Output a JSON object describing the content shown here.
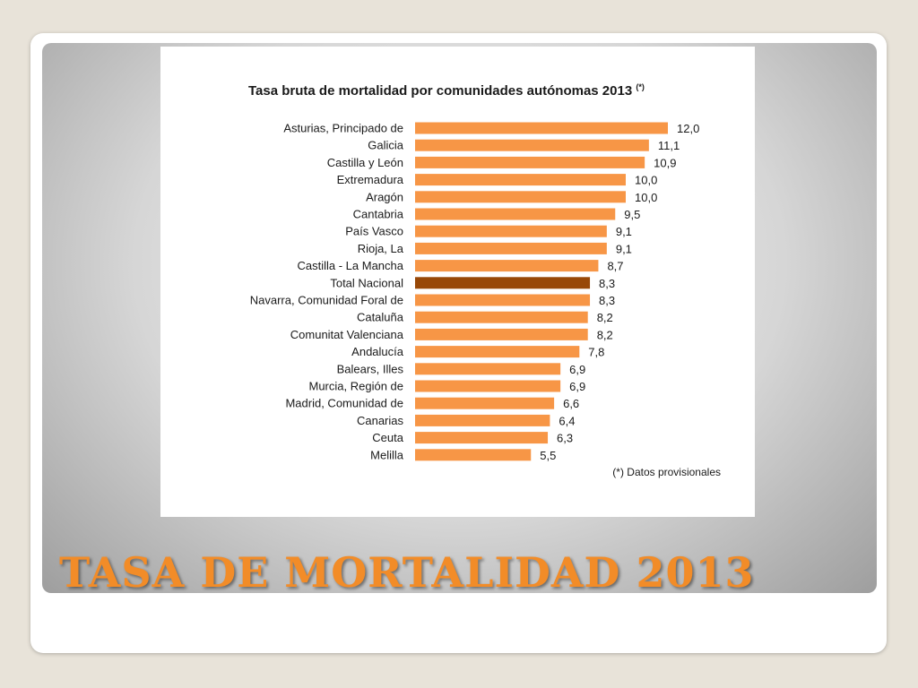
{
  "slide": {
    "title": "TASA DE MORTALIDAD 2013"
  },
  "colors": {
    "bar": "#f79646",
    "highlight_bar": "#984807",
    "title_text": "#f28c28"
  },
  "chart_data": {
    "type": "bar",
    "orientation": "horizontal",
    "title": "Tasa bruta de mortalidad por comunidades autónomas 2013",
    "title_note": "(*)",
    "footnote": "(*)  Datos provisionales",
    "highlight_category": "Total Nacional",
    "grid": false,
    "categories": [
      "Asturias, Principado de",
      "Galicia",
      "Castilla y León",
      "Extremadura",
      "Aragón",
      "Cantabria",
      "País Vasco",
      "Rioja, La",
      "Castilla - La Mancha",
      "Total Nacional",
      "Navarra, Comunidad Foral de",
      "Cataluña",
      "Comunitat Valenciana",
      "Andalucía",
      "Balears, Illes",
      "Murcia, Región de",
      "Madrid, Comunidad de",
      "Canarias",
      "Ceuta",
      "Melilla"
    ],
    "values": [
      12.0,
      11.1,
      10.9,
      10.0,
      10.0,
      9.5,
      9.1,
      9.1,
      8.7,
      8.3,
      8.3,
      8.2,
      8.2,
      7.8,
      6.9,
      6.9,
      6.6,
      6.4,
      6.3,
      5.5
    ],
    "value_labels": [
      "12,0",
      "11,1",
      "10,9",
      "10,0",
      "10,0",
      "9,5",
      "9,1",
      "9,1",
      "8,7",
      "8,3",
      "8,3",
      "8,2",
      "8,2",
      "7,8",
      "6,9",
      "6,9",
      "6,6",
      "6,4",
      "6,3",
      "5,5"
    ]
  }
}
